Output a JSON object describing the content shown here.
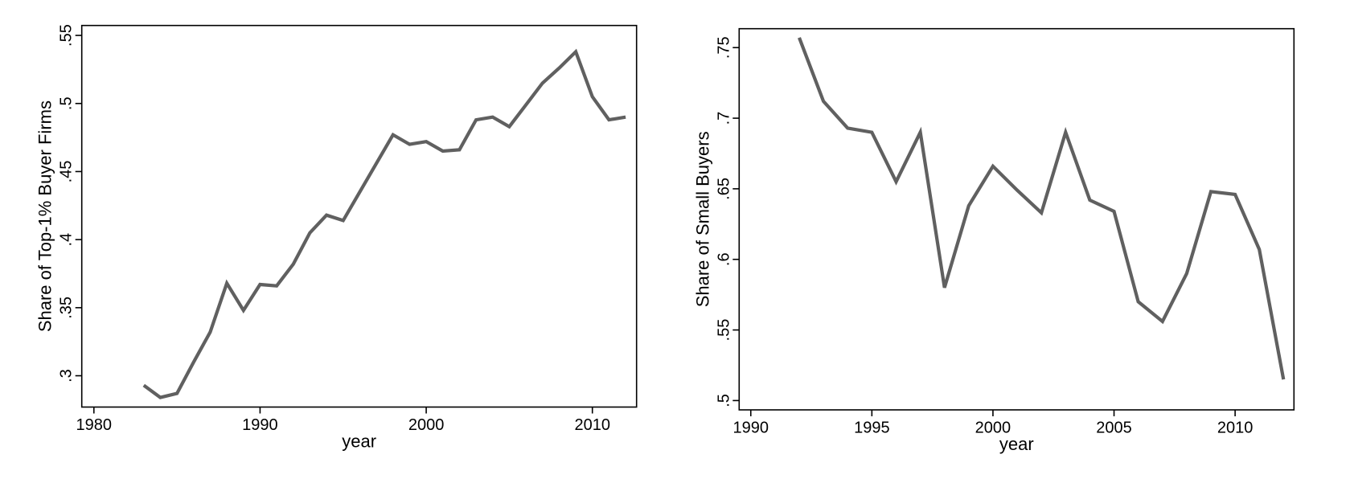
{
  "page": {
    "background": "#ffffff",
    "text_color": "#000000"
  },
  "chart_data": [
    {
      "type": "line",
      "title": "",
      "xlabel": "year",
      "ylabel": "Share of Top-1% Buyer Firms",
      "line_color": "#606060",
      "grid": false,
      "legend": false,
      "x": [
        1983,
        1984,
        1985,
        1986,
        1987,
        1988,
        1989,
        1990,
        1991,
        1992,
        1993,
        1994,
        1995,
        1996,
        1997,
        1998,
        1999,
        2000,
        2001,
        2002,
        2003,
        2004,
        2005,
        2006,
        2007,
        2008,
        2009,
        2010,
        2011,
        2012
      ],
      "y": [
        0.293,
        0.284,
        0.287,
        0.31,
        0.332,
        0.368,
        0.348,
        0.367,
        0.366,
        0.382,
        0.405,
        0.418,
        0.414,
        0.435,
        0.456,
        0.477,
        0.47,
        0.472,
        0.465,
        0.466,
        0.488,
        0.49,
        0.483,
        0.499,
        0.515,
        0.526,
        0.538,
        0.505,
        0.488,
        0.49
      ],
      "xticks": [
        1980,
        1990,
        2000,
        2010
      ],
      "xtick_labels": [
        "1980",
        "1990",
        "2000",
        "2010"
      ],
      "yticks": [
        0.3,
        0.35,
        0.4,
        0.45,
        0.5,
        0.55
      ],
      "ytick_labels": [
        ".3",
        ".35",
        ".4",
        ".45",
        ".5",
        ".55"
      ],
      "xlim": [
        1979.27,
        2012.66
      ],
      "ylim": [
        0.277,
        0.5573
      ]
    },
    {
      "type": "line",
      "title": "",
      "xlabel": "year",
      "ylabel": "Share of Small Buyers",
      "line_color": "#606060",
      "grid": false,
      "legend": false,
      "x": [
        1992,
        1993,
        1994,
        1995,
        1996,
        1997,
        1998,
        1999,
        2000,
        2001,
        2002,
        2003,
        2004,
        2005,
        2006,
        2007,
        2008,
        2009,
        2010,
        2011,
        2012
      ],
      "y": [
        0.757,
        0.712,
        0.693,
        0.69,
        0.655,
        0.69,
        0.58,
        0.638,
        0.666,
        0.649,
        0.633,
        0.69,
        0.642,
        0.634,
        0.57,
        0.556,
        0.59,
        0.648,
        0.646,
        0.607,
        0.515
      ],
      "xticks": [
        1990,
        1995,
        2000,
        2005,
        2010
      ],
      "xtick_labels": [
        "1990",
        "1995",
        "2000",
        "2005",
        "2010"
      ],
      "yticks": [
        0.5,
        0.55,
        0.6,
        0.65,
        0.7,
        0.75
      ],
      "ytick_labels": [
        ".5",
        ".55",
        ".6",
        ".65",
        ".7",
        ".75"
      ],
      "xlim": [
        1989.52,
        2012.43
      ],
      "ylim": [
        0.4934,
        0.7634
      ]
    }
  ]
}
